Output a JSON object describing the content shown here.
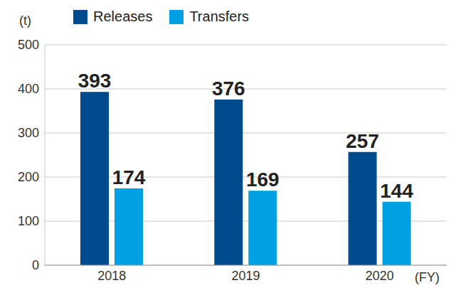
{
  "chart_data": {
    "type": "bar",
    "categories": [
      "2018",
      "2019",
      "2020"
    ],
    "series": [
      {
        "name": "Releases",
        "color": "#004b8d",
        "values": [
          393,
          376,
          257
        ]
      },
      {
        "name": "Transfers",
        "color": "#00a0e2",
        "values": [
          174,
          169,
          144
        ]
      }
    ],
    "y_label": "(t)",
    "x_label": "(FY)",
    "ylim": [
      0,
      500
    ],
    "yticks": [
      0,
      100,
      200,
      300,
      400,
      500
    ],
    "grid": true,
    "data_labels": true,
    "legend": "top-left"
  }
}
